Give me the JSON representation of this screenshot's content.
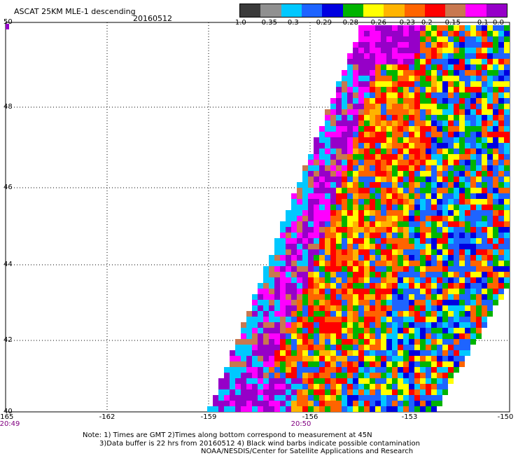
{
  "header": {
    "title": "ASCAT 25KM MLE-1 descending",
    "date": "20160512"
  },
  "colorbar": {
    "colors": [
      "#3a3a3a",
      "#909090",
      "#00c8ff",
      "#1e64ff",
      "#0000e0",
      "#00b400",
      "#ffff00",
      "#ffb400",
      "#ff6400",
      "#ff0000",
      "#c87850",
      "#ff00ff",
      "#9600c8"
    ],
    "ticks": [
      "-1.0",
      "-0.35",
      "-0.3",
      "-0.29",
      "-0.28",
      "-0.26",
      "-0.23",
      "-0.2",
      "-0.15",
      "-0.1",
      "0.0"
    ]
  },
  "axes": {
    "y_ticks": [
      "50",
      "48",
      "46",
      "44",
      "42",
      "40"
    ],
    "x_ticks": [
      "-165",
      "-162",
      "-159",
      "-156",
      "-153",
      "-150"
    ],
    "times": [
      "20:49",
      "20:50"
    ]
  },
  "notes": {
    "line1": "Note: 1) Times are GMT 2)Times along bottom correspond to measurement at 45N",
    "line2": "3)Data buffer is 22 hrs from 20160512 4) Black wind barbs indicate possible contamination",
    "line3": "NOAA/NESDIS/Center for Satellite Applications and Research"
  }
}
